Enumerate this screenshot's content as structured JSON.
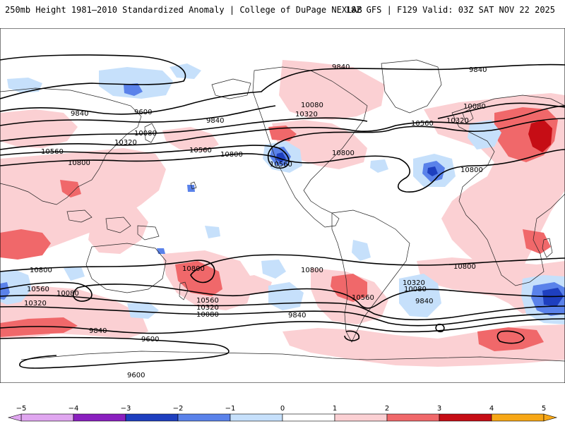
{
  "header": {
    "title": "250mb Height 1981–2010 Standardized Anomaly | College of DuPage NEXLAB",
    "run_info": "18Z GFS | F129 Valid: 03Z SAT NOV 22 2025"
  },
  "colors": {
    "anom_neg5": "#e0a6f0",
    "anom_neg4": "#8a1fbf",
    "anom_neg3": "#1e3fbf",
    "anom_neg2": "#5a82ea",
    "anom_neg1": "#c6e0fb",
    "anom_pos1": "#fbd0d3",
    "anom_pos2": "#f0686a",
    "anom_pos3": "#c60d15",
    "anom_pos4": "#e2101c",
    "anom_pos5": "#f7a716",
    "contour": "#000000",
    "coast": "#222222"
  },
  "colorbar": {
    "ticks": [
      "−5",
      "−4",
      "−3",
      "−2",
      "−1",
      "0",
      "1",
      "2",
      "3",
      "4",
      "5"
    ],
    "bins": [
      {
        "from": -5,
        "to": -4,
        "color": "#e0a6f0"
      },
      {
        "from": -4,
        "to": -3,
        "color": "#8a1fbf"
      },
      {
        "from": -3,
        "to": -2,
        "color": "#1e3fbf"
      },
      {
        "from": -2,
        "to": -1,
        "color": "#5a82ea"
      },
      {
        "from": -1,
        "to": 0,
        "color": "#c6e0fb"
      },
      {
        "from": 0,
        "to": 1,
        "color": "#ffffff"
      },
      {
        "from": 1,
        "to": 2,
        "color": "#fbd0d3"
      },
      {
        "from": 2,
        "to": 3,
        "color": "#f0686a"
      },
      {
        "from": 3,
        "to": 4,
        "color": "#c60d15"
      },
      {
        "from": 4,
        "to": 5,
        "color": "#f7a716"
      }
    ]
  },
  "contour_labels": {
    "n_9840_a": "9840",
    "n_9840_b": "9840",
    "n_9840_c": "9840",
    "n_9840_d": "9840",
    "n_9600": "9600",
    "n_10080_a": "10080",
    "n_10080_b": "10080",
    "n_10080_c": "10080",
    "n_10320_a": "10320",
    "n_10320_b": "10320",
    "n_10320_c": "10320",
    "n_10560_a": "10560",
    "n_10560_b": "10560",
    "n_10560_c": "10560",
    "n_10560_d": "10560",
    "n_10800_a": "10800",
    "n_10800_b": "10800",
    "n_10800_c": "10800",
    "n_10800_d": "10800",
    "s_10800_a": "10800",
    "s_10800_b": "10800",
    "s_10800_c": "10800",
    "s_10800_d": "10800",
    "s_10560_a": "10560",
    "s_10560_b": "10560",
    "s_10560_c": "10560",
    "s_10320_a": "10320",
    "s_10320_b": "10320",
    "s_10320_c": "10320",
    "s_10080_a": "10080",
    "s_10080_b": "10080",
    "s_10080_c": "10080",
    "s_9840_a": "9840",
    "s_9840_b": "9840",
    "s_9840_c": "9840",
    "s_9600_a": "9600",
    "s_9600_b": "9600"
  }
}
